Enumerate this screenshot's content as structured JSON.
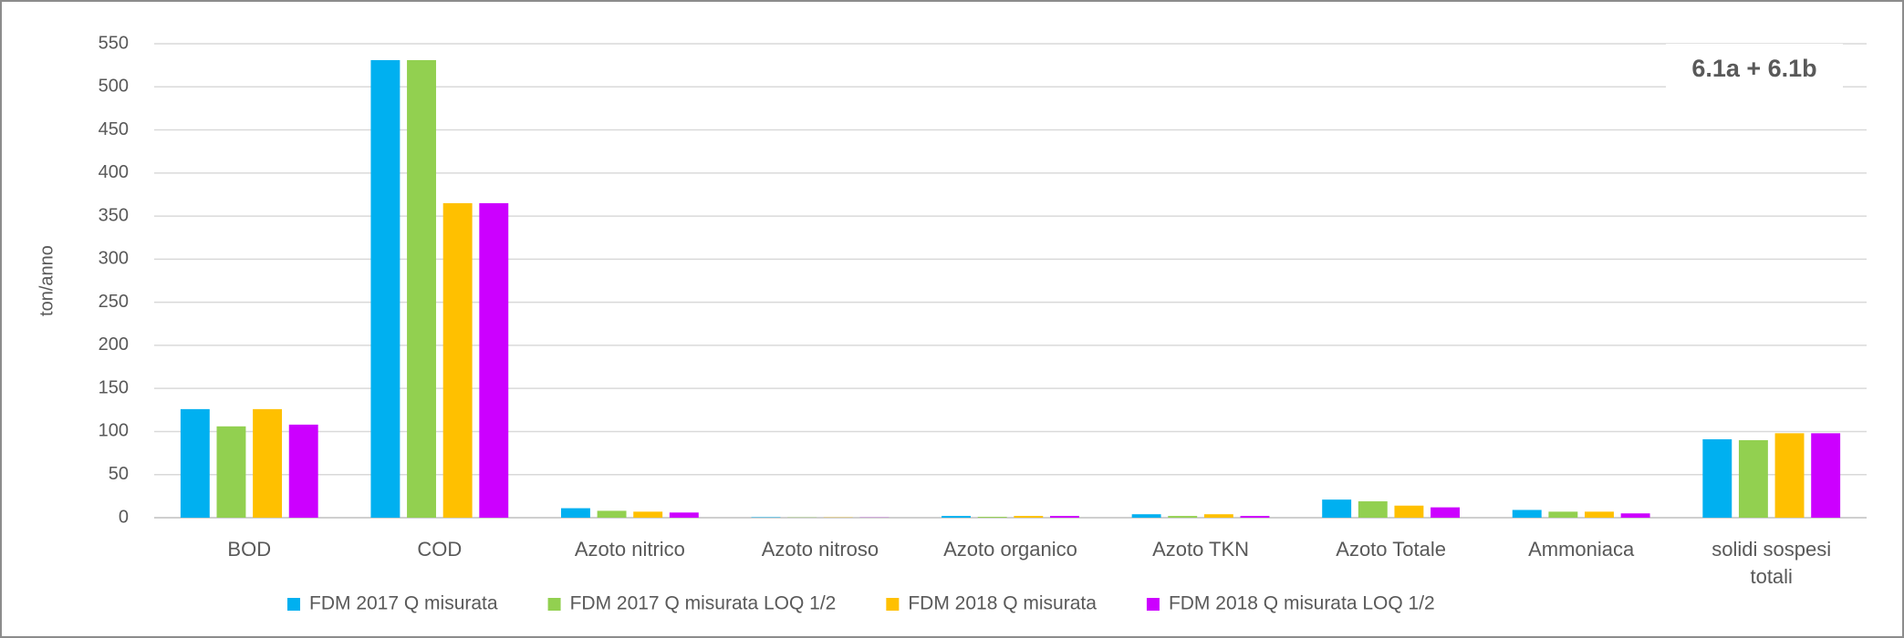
{
  "chart_data": {
    "type": "bar",
    "annotation": "6.1a + 6.1b",
    "y_label": "ton/anno",
    "categories": [
      "BOD",
      "COD",
      "Azoto nitrico",
      "Azoto nitroso",
      "Azoto organico",
      "Azoto TKN",
      "Azoto Totale",
      "Ammoniaca",
      "solidi sospesi totali"
    ],
    "series": [
      {
        "name": "FDM 2017 Q misurata",
        "color": "#00b0f0",
        "values": [
          126,
          531,
          11,
          0.5,
          2,
          4,
          21,
          9,
          91
        ]
      },
      {
        "name": "FDM 2017 Q misurata LOQ 1/2",
        "color": "#92d050",
        "values": [
          106,
          531,
          8,
          0.3,
          1,
          2,
          19,
          7,
          90
        ]
      },
      {
        "name": "FDM 2018 Q misurata",
        "color": "#ffc000",
        "values": [
          126,
          365,
          7,
          0.3,
          2,
          4,
          14,
          7,
          98
        ]
      },
      {
        "name": "FDM 2018 Q misurata  LOQ 1/2",
        "color": "#cc00ff",
        "values": [
          108,
          365,
          6,
          0.2,
          2,
          2,
          12,
          5,
          98
        ]
      }
    ],
    "ylim": [
      0,
      550
    ],
    "yticks": [
      0,
      50,
      100,
      150,
      200,
      250,
      300,
      350,
      400,
      450,
      500,
      550
    ],
    "grid": true,
    "legend": "bottom"
  }
}
